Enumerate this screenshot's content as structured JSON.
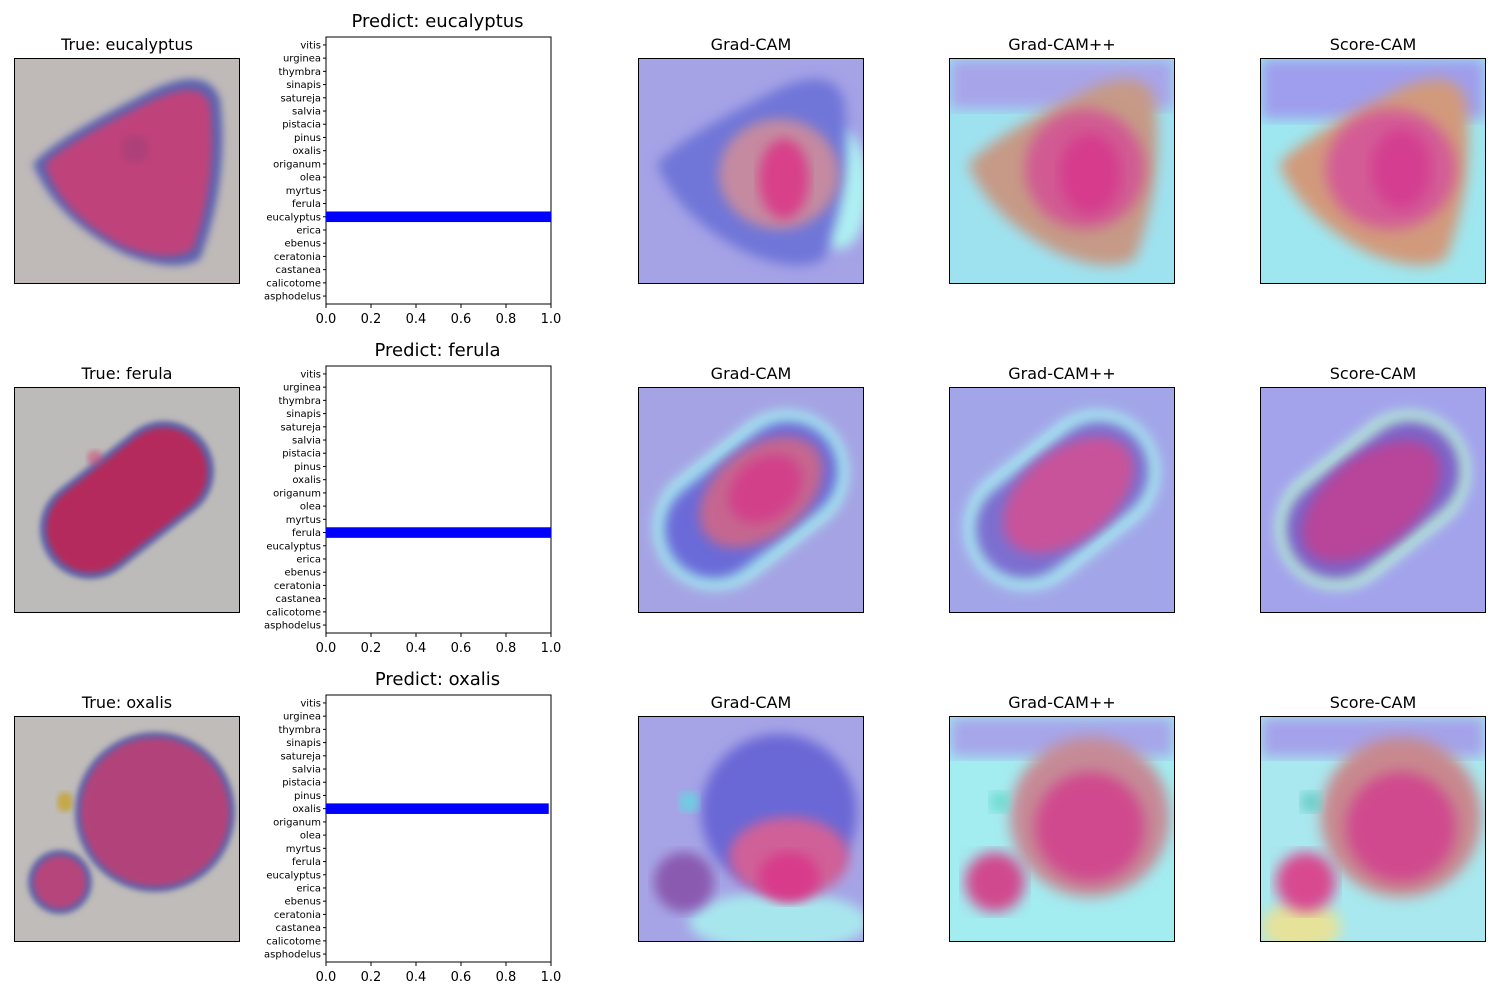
{
  "colors": {
    "bar": "#0000ff",
    "axis": "#000000"
  },
  "rows": [
    {
      "true_title": "True: eucalyptus",
      "predict_title": "Predict: eucalyptus",
      "cam_titles": [
        "Grad-CAM",
        "Grad-CAM++",
        "Score-CAM"
      ],
      "shape": "triangle"
    },
    {
      "true_title": "True: ferula",
      "predict_title": "Predict: ferula",
      "cam_titles": [
        "Grad-CAM",
        "Grad-CAM++",
        "Score-CAM"
      ],
      "shape": "capsule"
    },
    {
      "true_title": "True: oxalis",
      "predict_title": "Predict: oxalis",
      "cam_titles": [
        "Grad-CAM",
        "Grad-CAM++",
        "Score-CAM"
      ],
      "shape": "sphere"
    }
  ],
  "chart_data": [
    {
      "type": "bar",
      "orientation": "horizontal",
      "title": "Predict: eucalyptus",
      "categories": [
        "asphodelus",
        "calicotome",
        "castanea",
        "ceratonia",
        "ebenus",
        "erica",
        "eucalyptus",
        "ferula",
        "myrtus",
        "olea",
        "origanum",
        "oxalis",
        "pinus",
        "pistacia",
        "salvia",
        "satureja",
        "sinapis",
        "thymbra",
        "urginea",
        "vitis"
      ],
      "values": [
        0,
        0,
        0,
        0,
        0,
        0,
        1.0,
        0,
        0,
        0,
        0,
        0,
        0,
        0,
        0,
        0,
        0,
        0,
        0,
        0
      ],
      "xlim": [
        0,
        1.0
      ],
      "xticks": [
        "0.0",
        "0.2",
        "0.4",
        "0.6",
        "0.8",
        "1.0"
      ]
    },
    {
      "type": "bar",
      "orientation": "horizontal",
      "title": "Predict: ferula",
      "categories": [
        "asphodelus",
        "calicotome",
        "castanea",
        "ceratonia",
        "ebenus",
        "erica",
        "eucalyptus",
        "ferula",
        "myrtus",
        "olea",
        "origanum",
        "oxalis",
        "pinus",
        "pistacia",
        "salvia",
        "satureja",
        "sinapis",
        "thymbra",
        "urginea",
        "vitis"
      ],
      "values": [
        0,
        0,
        0,
        0,
        0,
        0,
        0,
        1.0,
        0,
        0,
        0,
        0,
        0,
        0,
        0,
        0,
        0,
        0,
        0,
        0
      ],
      "xlim": [
        0,
        1.0
      ],
      "xticks": [
        "0.0",
        "0.2",
        "0.4",
        "0.6",
        "0.8",
        "1.0"
      ]
    },
    {
      "type": "bar",
      "orientation": "horizontal",
      "title": "Predict: oxalis",
      "categories": [
        "asphodelus",
        "calicotome",
        "castanea",
        "ceratonia",
        "ebenus",
        "erica",
        "eucalyptus",
        "ferula",
        "myrtus",
        "olea",
        "origanum",
        "oxalis",
        "pinus",
        "pistacia",
        "salvia",
        "satureja",
        "sinapis",
        "thymbra",
        "urginea",
        "vitis"
      ],
      "values": [
        0,
        0,
        0,
        0,
        0,
        0,
        0,
        0,
        0,
        0,
        0,
        0.99,
        0,
        0,
        0,
        0,
        0,
        0,
        0,
        0
      ],
      "xlim": [
        0,
        1.0
      ],
      "xticks": [
        "0.0",
        "0.2",
        "0.4",
        "0.6",
        "0.8",
        "1.0"
      ]
    }
  ]
}
